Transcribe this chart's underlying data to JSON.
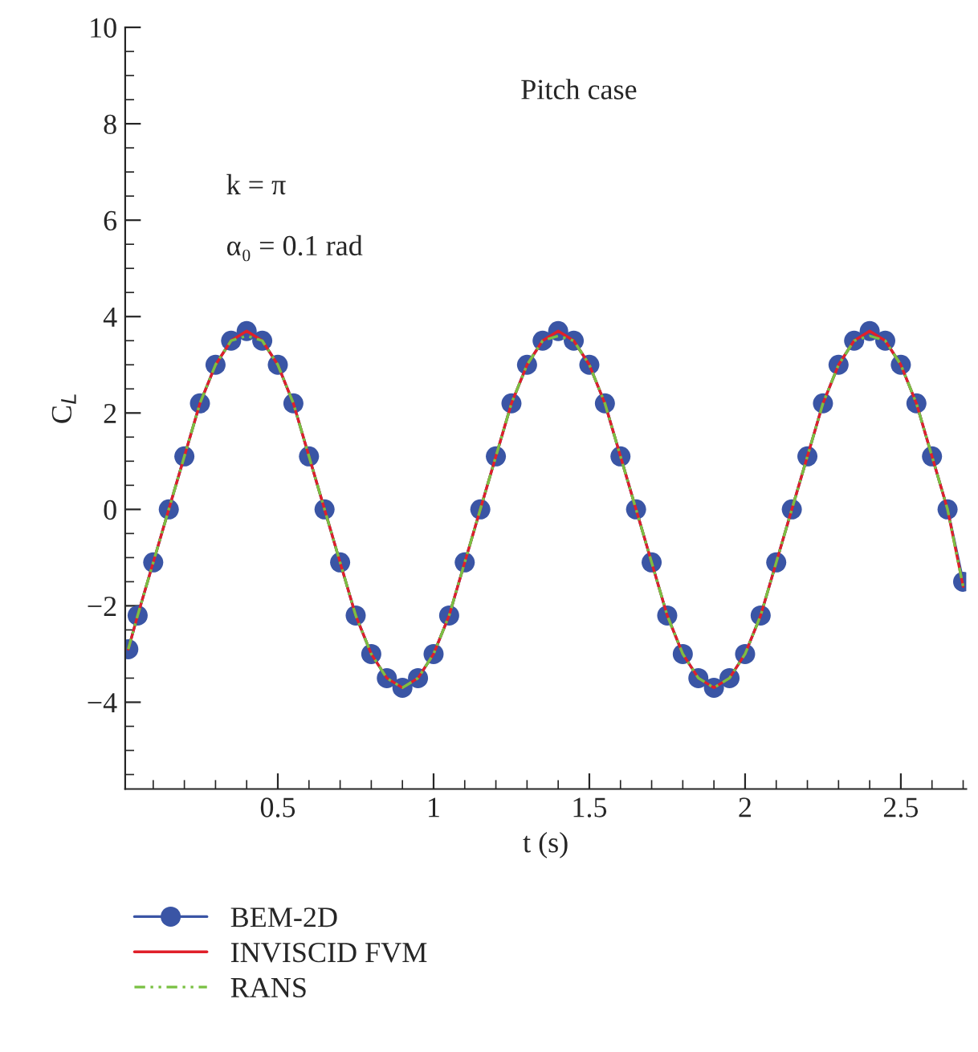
{
  "chart_data": {
    "type": "line",
    "xlabel": "t (s)",
    "ylabel": "C$_{L}$",
    "annotations": [
      "Pitch case",
      "k = π",
      "α₀ = 0.1 rad"
    ],
    "x": [
      0.02,
      0.05,
      0.1,
      0.15,
      0.2,
      0.25,
      0.3,
      0.35,
      0.4,
      0.45,
      0.5,
      0.55,
      0.6,
      0.65,
      0.7,
      0.75,
      0.8,
      0.85,
      0.9,
      0.95,
      1.0,
      1.05,
      1.1,
      1.15,
      1.2,
      1.25,
      1.3,
      1.35,
      1.4,
      1.45,
      1.5,
      1.55,
      1.6,
      1.65,
      1.7,
      1.75,
      1.8,
      1.85,
      1.9,
      1.95,
      2.0,
      2.05,
      2.1,
      2.15,
      2.2,
      2.25,
      2.3,
      2.35,
      2.4,
      2.45,
      2.5,
      2.55,
      2.6,
      2.65,
      2.7
    ],
    "series": [
      {
        "name": "BEM-2D",
        "color": "#3a55a5",
        "marker": "circle",
        "line_style": "solid",
        "values": [
          -2.9,
          -2.2,
          -1.1,
          0.0,
          1.1,
          2.2,
          3.0,
          3.5,
          3.7,
          3.5,
          3.0,
          2.2,
          1.1,
          0.0,
          -1.1,
          -2.2,
          -3.0,
          -3.5,
          -3.7,
          -3.5,
          -3.0,
          -2.2,
          -1.1,
          0.0,
          1.1,
          2.2,
          3.0,
          3.5,
          3.7,
          3.5,
          3.0,
          2.2,
          1.1,
          0.0,
          -1.1,
          -2.2,
          -3.0,
          -3.5,
          -3.7,
          -3.5,
          -3.0,
          -2.2,
          -1.1,
          0.0,
          1.1,
          2.2,
          3.0,
          3.5,
          3.7,
          3.5,
          3.0,
          2.2,
          1.1,
          0.0,
          -1.5
        ]
      },
      {
        "name": "INVISCID FVM",
        "color": "#e0202a",
        "line_style": "solid",
        "values": [
          -2.9,
          -2.2,
          -1.1,
          0.0,
          1.1,
          2.2,
          3.0,
          3.5,
          3.7,
          3.5,
          3.0,
          2.2,
          1.1,
          0.0,
          -1.1,
          -2.2,
          -3.0,
          -3.5,
          -3.7,
          -3.5,
          -3.0,
          -2.2,
          -1.1,
          0.0,
          1.1,
          2.2,
          3.0,
          3.5,
          3.7,
          3.5,
          3.0,
          2.2,
          1.1,
          0.0,
          -1.1,
          -2.2,
          -3.0,
          -3.5,
          -3.7,
          -3.5,
          -3.0,
          -2.2,
          -1.1,
          0.0,
          1.1,
          2.2,
          3.0,
          3.5,
          3.7,
          3.5,
          3.0,
          2.2,
          1.1,
          0.0,
          -1.6
        ]
      },
      {
        "name": "RANS",
        "color": "#7ac143",
        "line_style": "dashed",
        "values": [
          -2.9,
          -2.2,
          -1.1,
          0.0,
          1.1,
          2.2,
          3.0,
          3.5,
          3.6,
          3.5,
          3.0,
          2.2,
          1.1,
          0.0,
          -1.1,
          -2.2,
          -3.0,
          -3.5,
          -3.7,
          -3.5,
          -3.0,
          -2.2,
          -1.1,
          0.0,
          1.1,
          2.2,
          3.0,
          3.5,
          3.6,
          3.5,
          3.0,
          2.2,
          1.1,
          0.0,
          -1.1,
          -2.2,
          -3.0,
          -3.5,
          -3.7,
          -3.5,
          -3.0,
          -2.2,
          -1.1,
          0.0,
          1.1,
          2.2,
          3.0,
          3.5,
          3.6,
          3.5,
          3.0,
          2.2,
          1.1,
          0.0,
          -1.6
        ]
      }
    ],
    "xlim": [
      0.01,
      2.71
    ],
    "xticks": [
      0.5,
      1,
      1.5,
      2,
      2.5
    ],
    "ylim": [
      -5.8,
      10
    ],
    "yticks": [
      {
        "value": -4,
        "label": "−4"
      },
      {
        "value": -2,
        "label": "−2"
      },
      0,
      2,
      4,
      6,
      8,
      10
    ],
    "legend": "bottom left"
  }
}
